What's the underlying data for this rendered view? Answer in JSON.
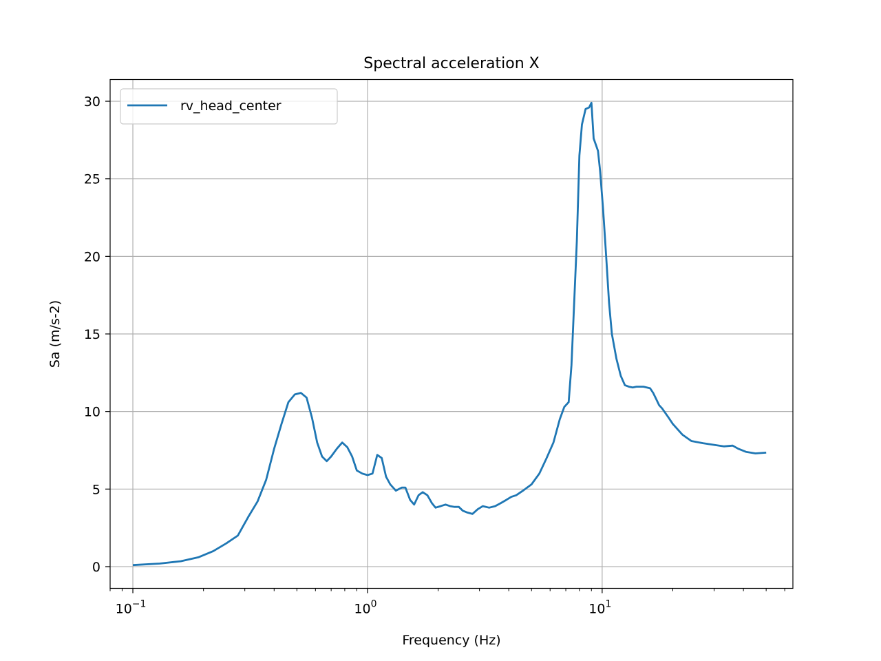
{
  "chart_data": {
    "type": "line",
    "title": "Spectral acceleration X",
    "xlabel": "Frequency (Hz)",
    "ylabel": "Sa (m/s-2)",
    "xscale": "log",
    "xlim": [
      0.08,
      65
    ],
    "ylim": [
      -1.4,
      31.4
    ],
    "grid": true,
    "legend_location": "upper left",
    "x_ticks": [
      {
        "value": 0.1,
        "base": "10",
        "exp": "−1"
      },
      {
        "value": 1,
        "base": "10",
        "exp": "0"
      },
      {
        "value": 10,
        "base": "10",
        "exp": "1"
      }
    ],
    "y_ticks": [
      {
        "value": 0,
        "label": "0"
      },
      {
        "value": 5,
        "label": "5"
      },
      {
        "value": 10,
        "label": "10"
      },
      {
        "value": 15,
        "label": "15"
      },
      {
        "value": 20,
        "label": "20"
      },
      {
        "value": 25,
        "label": "25"
      },
      {
        "value": 30,
        "label": "30"
      }
    ],
    "series": [
      {
        "name": "rv_head_center",
        "color": "#1f77b4",
        "x": [
          0.1,
          0.13,
          0.16,
          0.19,
          0.22,
          0.25,
          0.28,
          0.31,
          0.34,
          0.37,
          0.4,
          0.43,
          0.46,
          0.49,
          0.52,
          0.55,
          0.58,
          0.61,
          0.64,
          0.67,
          0.7,
          0.74,
          0.78,
          0.82,
          0.86,
          0.9,
          0.95,
          1.0,
          1.05,
          1.1,
          1.15,
          1.2,
          1.25,
          1.32,
          1.4,
          1.45,
          1.52,
          1.58,
          1.65,
          1.72,
          1.8,
          1.88,
          1.95,
          2.05,
          2.15,
          2.25,
          2.35,
          2.45,
          2.55,
          2.65,
          2.8,
          2.95,
          3.1,
          3.3,
          3.5,
          3.7,
          3.9,
          4.1,
          4.3,
          4.6,
          5.0,
          5.4,
          5.8,
          6.2,
          6.6,
          6.9,
          7.2,
          7.4,
          7.6,
          7.8,
          8.0,
          8.2,
          8.5,
          8.8,
          9.0,
          9.2,
          9.4,
          9.6,
          9.8,
          10.1,
          10.4,
          10.7,
          11.0,
          11.5,
          12.0,
          12.5,
          13.0,
          13.5,
          14.0,
          15.0,
          16.0,
          16.5,
          17.0,
          17.5,
          18.0,
          19.0,
          20.0,
          22.0,
          24.0,
          27.0,
          30.0,
          33.0,
          36.0,
          38.0,
          41.0,
          45.0,
          50.0
        ],
        "y": [
          0.1,
          0.2,
          0.35,
          0.6,
          1.0,
          1.5,
          2.0,
          3.2,
          4.2,
          5.6,
          7.6,
          9.2,
          10.6,
          11.1,
          11.2,
          10.9,
          9.6,
          8.0,
          7.1,
          6.8,
          7.1,
          7.6,
          8.0,
          7.7,
          7.1,
          6.2,
          6.0,
          5.9,
          6.0,
          7.2,
          7.0,
          5.8,
          5.3,
          4.9,
          5.1,
          5.1,
          4.3,
          4.0,
          4.6,
          4.8,
          4.6,
          4.1,
          3.8,
          3.9,
          4.0,
          3.9,
          3.85,
          3.85,
          3.6,
          3.5,
          3.4,
          3.7,
          3.9,
          3.8,
          3.9,
          4.1,
          4.3,
          4.5,
          4.6,
          4.9,
          5.3,
          6.0,
          7.0,
          8.0,
          9.5,
          10.3,
          10.6,
          13.0,
          17.0,
          21.0,
          26.5,
          28.5,
          29.5,
          29.6,
          29.9,
          27.6,
          27.2,
          26.8,
          25.5,
          23.0,
          20.0,
          17.0,
          15.0,
          13.4,
          12.3,
          11.7,
          11.6,
          11.55,
          11.6,
          11.6,
          11.5,
          11.2,
          10.8,
          10.4,
          10.2,
          9.7,
          9.2,
          8.5,
          8.1,
          7.95,
          7.85,
          7.75,
          7.8,
          7.6,
          7.4,
          7.3,
          7.35
        ]
      }
    ]
  }
}
